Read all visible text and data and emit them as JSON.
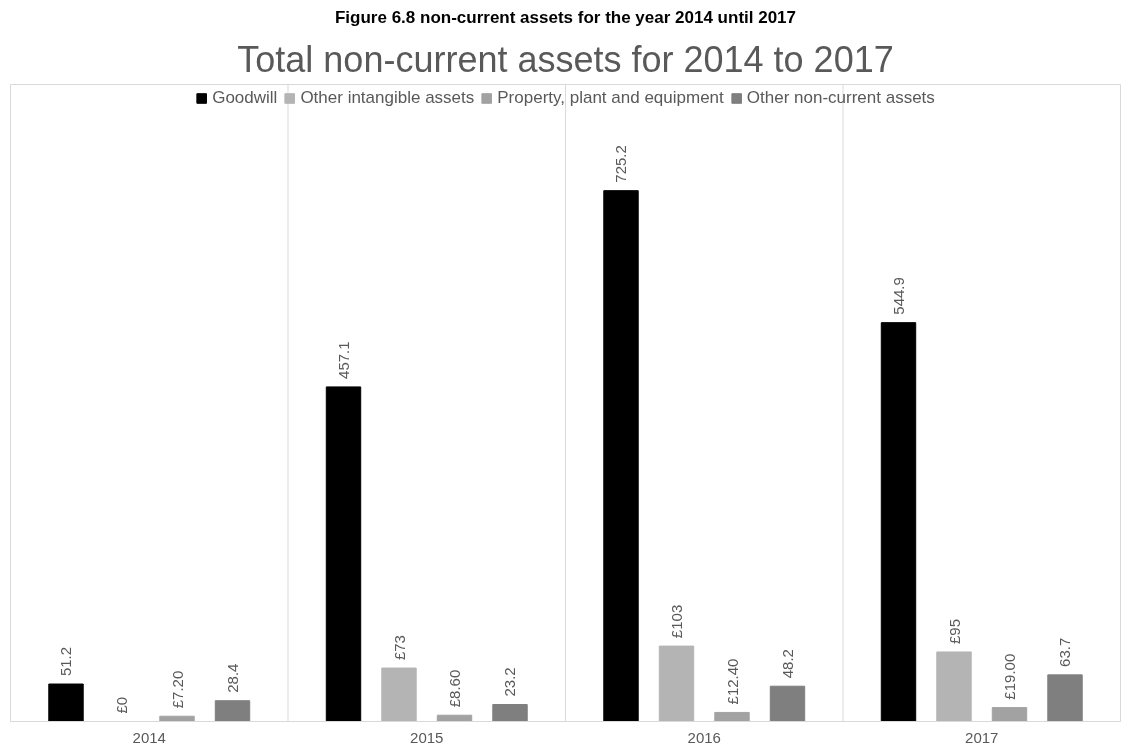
{
  "chart_data": {
    "type": "bar",
    "title": "Total non-current assets for 2014 to 2017",
    "subtitle": "Figure 6.8 non-current assets for the year 2014 until 2017",
    "categories": [
      "2014",
      "2015",
      "2016",
      "2017"
    ],
    "series": [
      {
        "name": "Goodwill",
        "color": "#000000",
        "values": [
          51.2,
          457.1,
          725.2,
          544.9
        ],
        "value_labels": [
          "51.2",
          "457.1",
          "725.2",
          "544.9"
        ]
      },
      {
        "name": "Other intangible assets",
        "color": "#b4b4b4",
        "values": [
          0,
          73,
          103,
          95
        ],
        "value_labels": [
          "£0",
          "£73",
          "£103",
          "£95"
        ]
      },
      {
        "name": "Property, plant and equipment",
        "color": "#a2a2a2",
        "values": [
          7.2,
          8.6,
          12.4,
          19.0
        ],
        "value_labels": [
          "£7.20",
          "£8.60",
          "£12.40",
          "£19.00"
        ]
      },
      {
        "name": "Other non-current assets",
        "color": "#7f7f7f",
        "values": [
          28.4,
          23.2,
          48.2,
          63.7
        ],
        "value_labels": [
          "28.4",
          "23.2",
          "48.2",
          "63.7"
        ]
      }
    ],
    "legend": "top",
    "grid": "x"
  }
}
